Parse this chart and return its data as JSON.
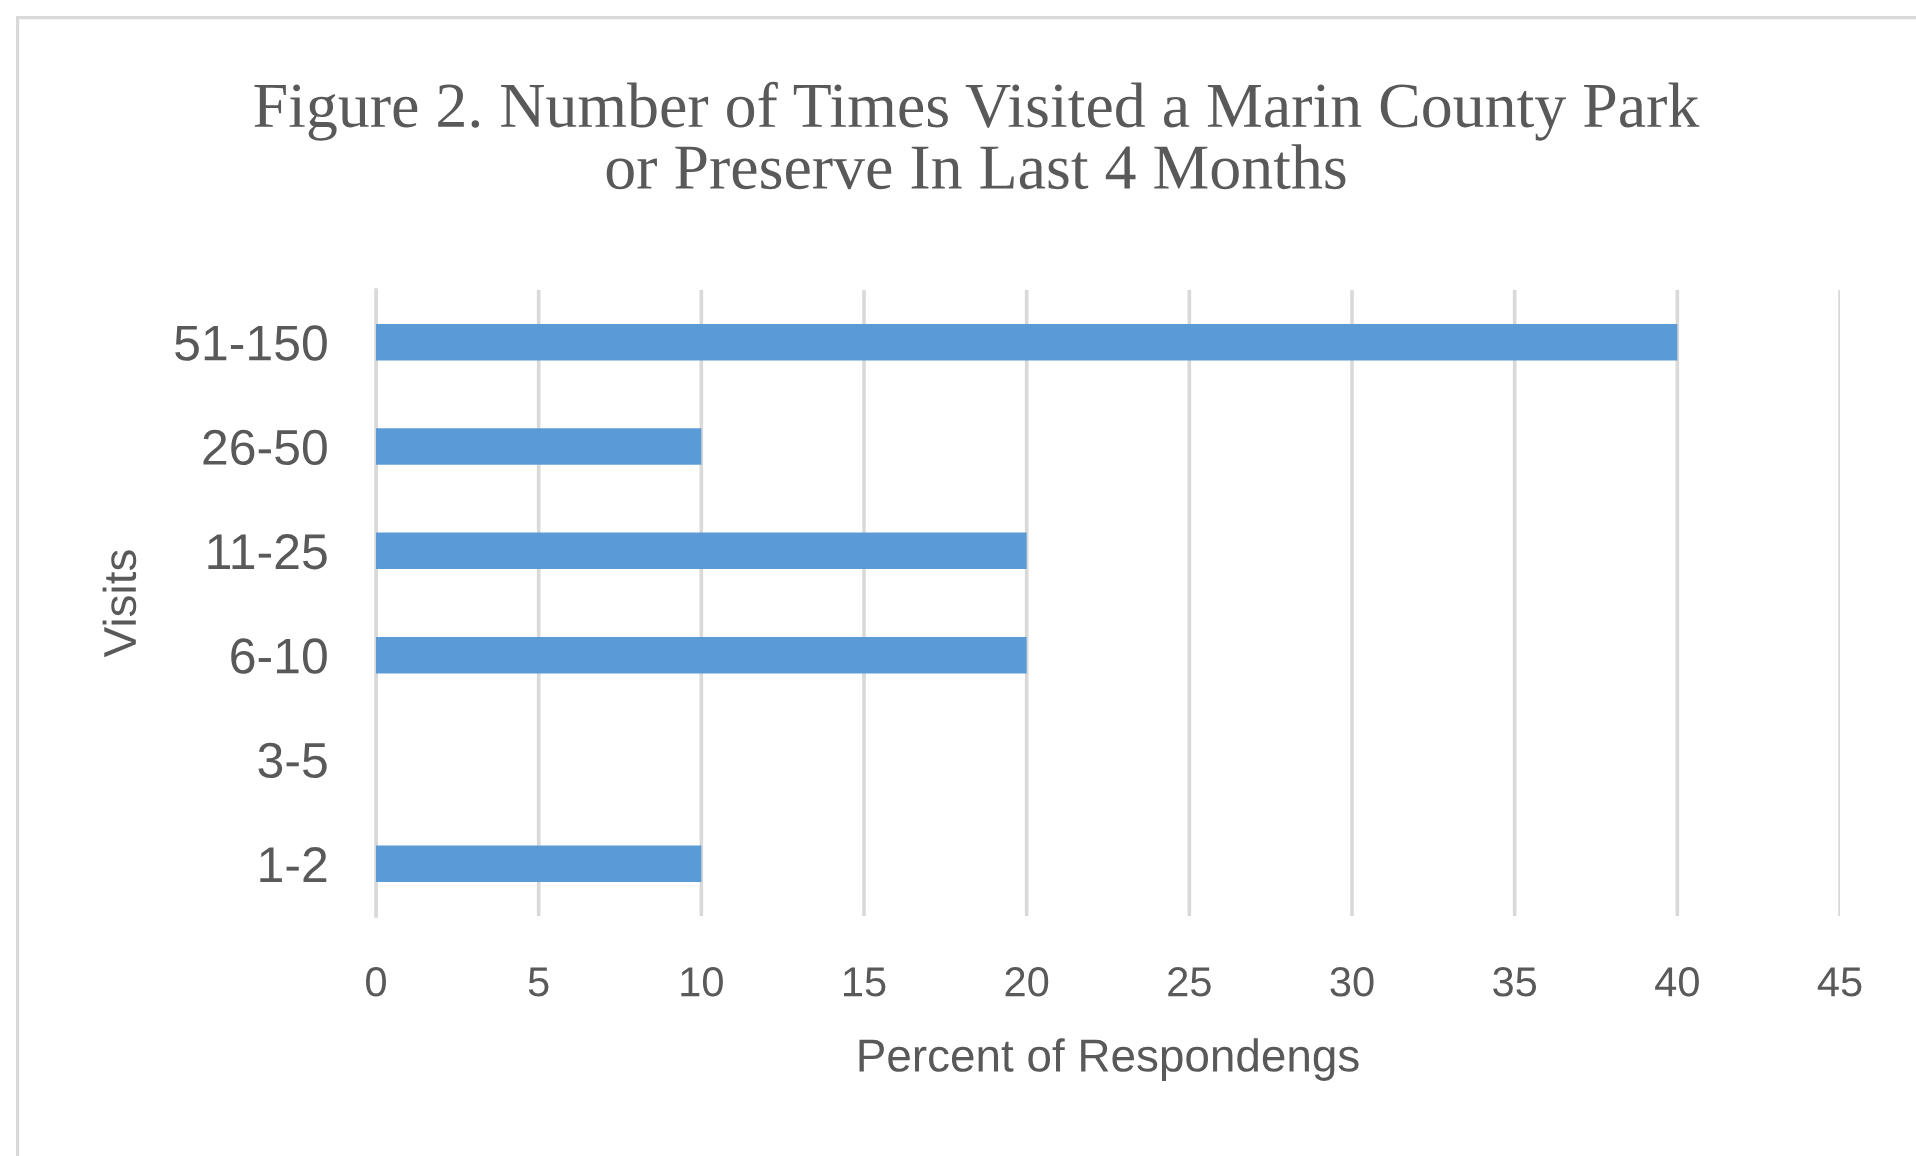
{
  "chart_data": {
    "type": "bar",
    "orientation": "horizontal",
    "title": "Figure 2. Number of Times Visited a Marin County Park or Preserve In Last 4 Months",
    "xlabel": "Percent of Respondengs",
    "ylabel": "Visits",
    "categories": [
      "51-150",
      "26-50",
      "11-25",
      "6-10",
      "3-5",
      "1-2"
    ],
    "values": [
      40,
      10,
      20,
      20,
      0,
      10
    ],
    "color": "#5b9bd5",
    "xlim": [
      0,
      45
    ],
    "xticks": [
      0,
      5,
      10,
      15,
      20,
      25,
      30,
      35,
      40,
      45
    ],
    "grid": "x"
  }
}
